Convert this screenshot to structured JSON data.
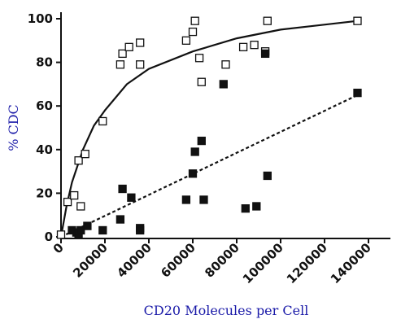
{
  "chart_data": {
    "type": "scatter",
    "y_label": "% CDC",
    "x_label": "CD20 Molecules per Cell",
    "xlim": [
      0,
      150000
    ],
    "xticks": [
      0,
      20000,
      40000,
      60000,
      80000,
      100000,
      120000,
      140000
    ],
    "ylim": [
      0,
      100
    ],
    "yticks": [
      0,
      20,
      40,
      60,
      80,
      100
    ],
    "series": [
      {
        "kind": "scatter",
        "marker": "open",
        "color": "#111111",
        "x": [
          0,
          3000,
          6000,
          8000,
          9000,
          11000,
          19000,
          27000,
          28000,
          31000,
          36000,
          36000,
          57000,
          60000,
          61000,
          63000,
          64000,
          75000,
          83000,
          88000,
          93000,
          94000,
          135000
        ],
        "values": [
          1,
          16,
          19,
          35,
          14,
          38,
          53,
          79,
          84,
          87,
          89,
          79,
          90,
          94,
          99,
          82,
          71,
          79,
          87,
          88,
          85,
          99,
          99
        ]
      },
      {
        "kind": "scatter",
        "marker": "filled",
        "color": "#111111",
        "x": [
          5000,
          7000,
          8000,
          9000,
          12000,
          19000,
          27000,
          28000,
          32000,
          36000,
          36000,
          57000,
          60000,
          61000,
          64000,
          65000,
          74000,
          84000,
          89000,
          93000,
          94000,
          135000
        ],
        "values": [
          3,
          2,
          1,
          3,
          5,
          3,
          8,
          22,
          18,
          4,
          3,
          17,
          29,
          39,
          44,
          17,
          70,
          13,
          14,
          84,
          28,
          66
        ]
      },
      {
        "kind": "line",
        "dash": false,
        "color": "#111111",
        "x": [
          0,
          2500,
          5000,
          10000,
          15000,
          20000,
          30000,
          40000,
          60000,
          80000,
          100000,
          135000
        ],
        "values": [
          0,
          14,
          25,
          40,
          51,
          58,
          70,
          77,
          85,
          91,
          95,
          99
        ]
      },
      {
        "kind": "line",
        "dash": true,
        "color": "#111111",
        "x": [
          0,
          135000
        ],
        "values": [
          0,
          65
        ]
      }
    ]
  }
}
